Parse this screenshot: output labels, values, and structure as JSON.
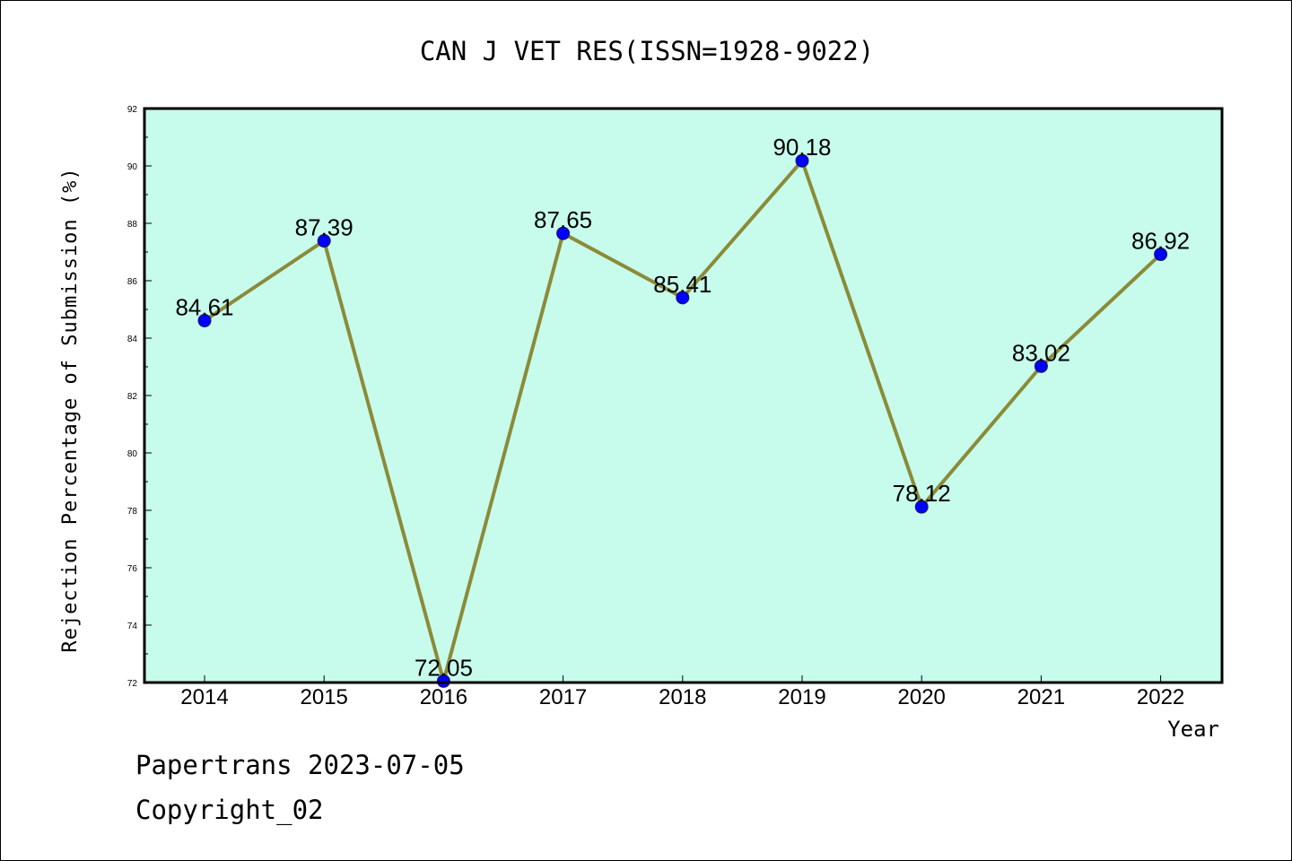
{
  "chart_data": {
    "type": "line",
    "title": "CAN J VET RES(ISSN=1928-9022)",
    "xlabel": "Year",
    "ylabel": "Rejection Percentage of Submission (%)",
    "categories": [
      "2014",
      "2015",
      "2016",
      "2017",
      "2018",
      "2019",
      "2020",
      "2021",
      "2022"
    ],
    "series": [
      {
        "values": [
          84.61,
          87.39,
          72.05,
          87.65,
          85.41,
          90.18,
          78.12,
          83.02,
          86.92
        ],
        "data_labels": [
          "84.61",
          "87.39",
          "72.05",
          "87.65",
          "85.41",
          "90.18",
          "78.12",
          "83.02",
          "86.92"
        ]
      }
    ],
    "ylim": [
      72,
      92
    ],
    "yticks": [
      "72",
      "74",
      "76",
      "78",
      "80",
      "82",
      "84",
      "86",
      "88",
      "90",
      "92"
    ],
    "grid": false,
    "colors": {
      "plot_background": "#c7fced",
      "line": "#8b8b38",
      "marker": "#0000ff"
    }
  },
  "footer": {
    "line1": "Papertrans 2023-07-05",
    "line2": "Copyright_02"
  }
}
